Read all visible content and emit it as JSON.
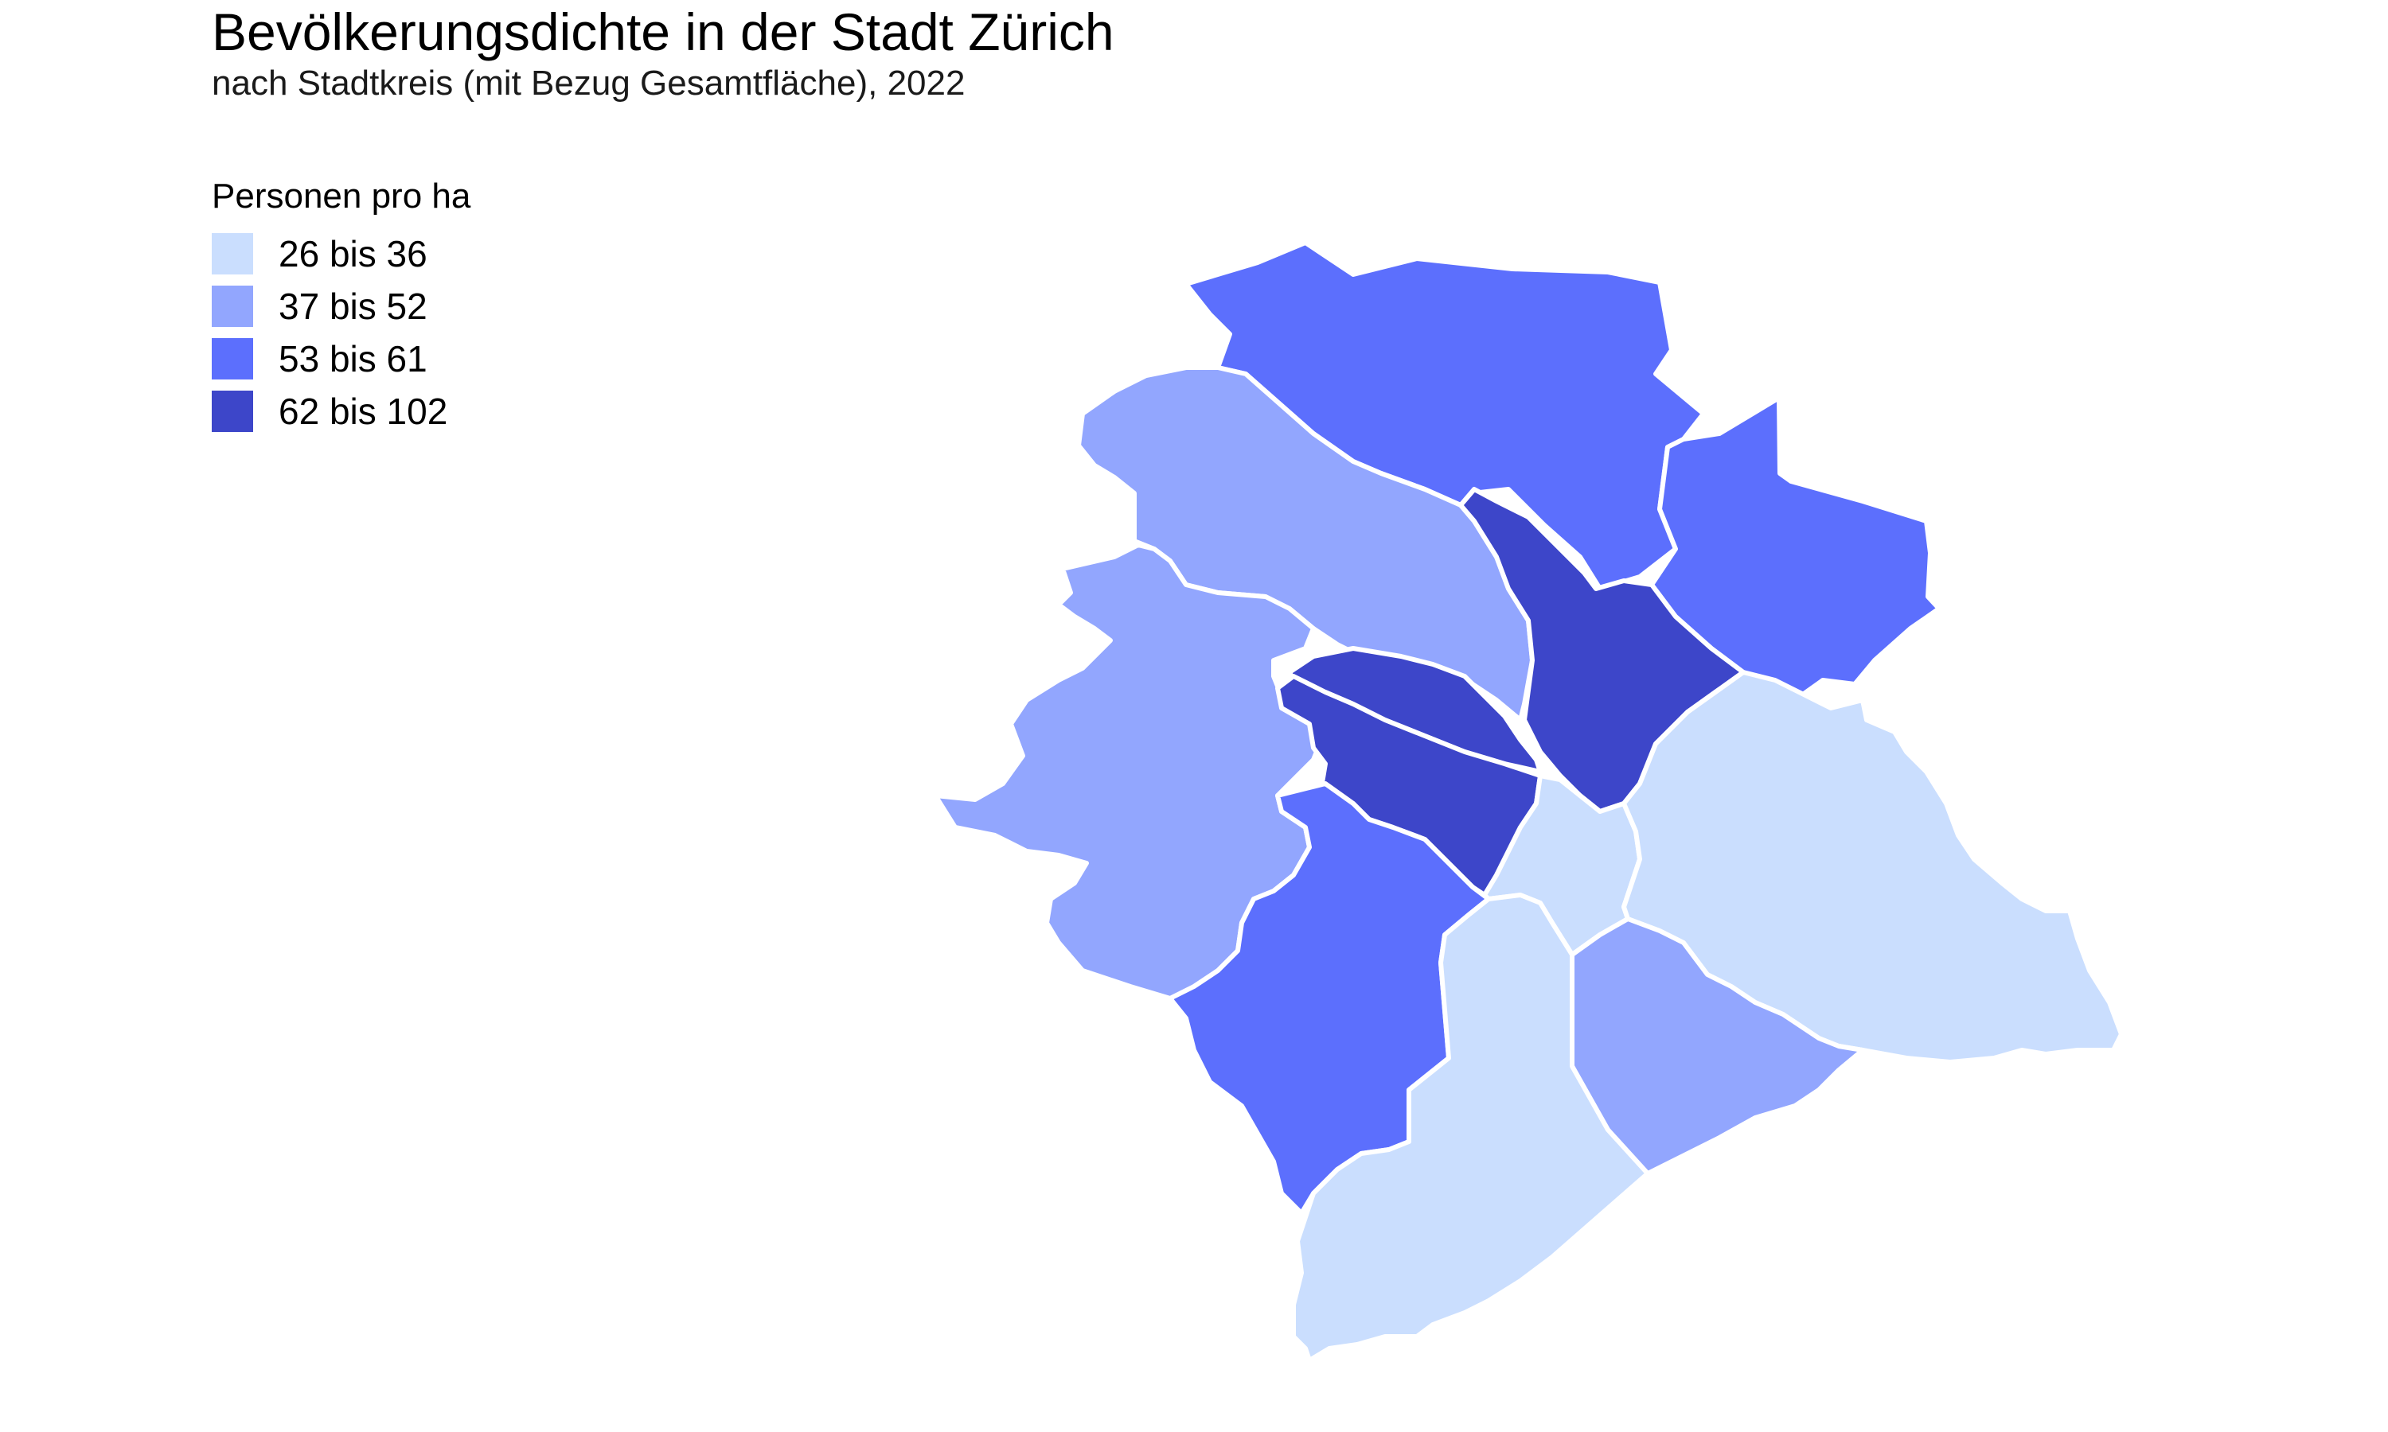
{
  "title": "Bevölkerungsdichte in der Stadt Zürich",
  "subtitle": "nach Stadtkreis (mit Bezug Gesamtfläche), 2022",
  "legend": {
    "title": "Personen pro ha",
    "items": [
      {
        "label": "26 bis 36",
        "color": "#cadefe"
      },
      {
        "label": "37 bis 52",
        "color": "#92a6fe"
      },
      {
        "label": "53 bis 61",
        "color": "#5c6ffd"
      },
      {
        "label": "62 bis 102",
        "color": "#3d46c9"
      }
    ]
  },
  "districts": [
    {
      "id": "kreis-11",
      "class": 2
    },
    {
      "id": "kreis-12",
      "class": 2
    },
    {
      "id": "kreis-10",
      "class": 1
    },
    {
      "id": "kreis-9",
      "class": 1
    },
    {
      "id": "kreis-6",
      "class": 3
    },
    {
      "id": "kreis-5",
      "class": 3
    },
    {
      "id": "kreis-4",
      "class": 3
    },
    {
      "id": "kreis-3",
      "class": 2
    },
    {
      "id": "kreis-1",
      "class": 0
    },
    {
      "id": "kreis-7",
      "class": 0
    },
    {
      "id": "kreis-2",
      "class": 0
    },
    {
      "id": "kreis-8",
      "class": 1
    }
  ]
}
